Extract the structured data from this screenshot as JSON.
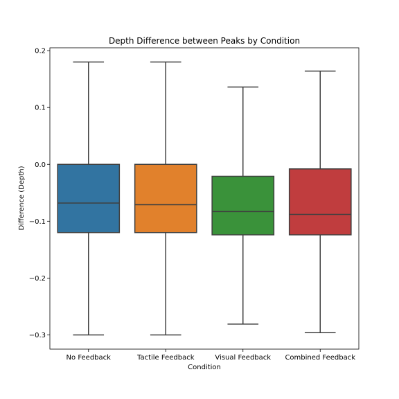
{
  "chart_data": {
    "type": "box",
    "title": "Depth Difference between Peaks by Condition",
    "xlabel": "Condition",
    "ylabel": "Difference (Depth)",
    "ylim": [
      -0.325,
      0.205
    ],
    "yticks": [
      {
        "value": 0.2,
        "label": "0.2"
      },
      {
        "value": 0.1,
        "label": "0.1"
      },
      {
        "value": 0.0,
        "label": "0.0"
      },
      {
        "value": -0.1,
        "label": "−0.1"
      },
      {
        "value": -0.2,
        "label": "−0.2"
      },
      {
        "value": -0.3,
        "label": "−0.3"
      }
    ],
    "grid": false,
    "categories": [
      "No Feedback",
      "Tactile Feedback",
      "Visual Feedback",
      "Combined Feedback"
    ],
    "boxes": [
      {
        "category": "No Feedback",
        "whisker_low": -0.3,
        "q1": -0.12,
        "median": -0.068,
        "q3": 0.0,
        "whisker_high": 0.18,
        "color": "#3274a1"
      },
      {
        "category": "Tactile Feedback",
        "whisker_low": -0.3,
        "q1": -0.12,
        "median": -0.071,
        "q3": 0.0,
        "whisker_high": 0.18,
        "color": "#e1812c"
      },
      {
        "category": "Visual Feedback",
        "whisker_low": -0.281,
        "q1": -0.124,
        "median": -0.083,
        "q3": -0.021,
        "whisker_high": 0.136,
        "color": "#3a923a"
      },
      {
        "category": "Combined Feedback",
        "whisker_low": -0.296,
        "q1": -0.124,
        "median": -0.088,
        "q3": -0.008,
        "whisker_high": 0.164,
        "color": "#c03d3e"
      }
    ]
  }
}
